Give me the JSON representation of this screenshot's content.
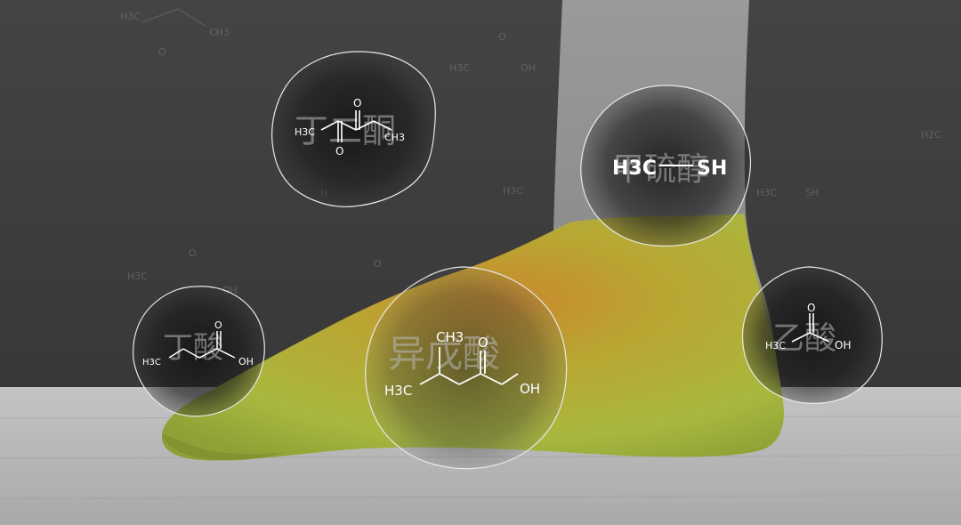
{
  "scene": {
    "description_tag": "",
    "colors": {
      "wall": "#3f3f3f",
      "floor": "#b8b8b8",
      "leg": "#8c8c8c",
      "foot_green": "#a7b63a",
      "foot_orange": "#c8792f",
      "bubble_fill": "#1e1e1e",
      "bubble_stroke": "#e6e6e6"
    }
  },
  "bubbles": [
    {
      "id": "butanedione",
      "name_cn": "丁二酮",
      "labels": {
        "left": "H3C",
        "right": "CH3",
        "o_top": "O",
        "o_bottom": "O"
      }
    },
    {
      "id": "methanethiol",
      "name_cn": "甲硫醇",
      "labels": {
        "left": "H3C",
        "right": "SH"
      }
    },
    {
      "id": "butyric-acid",
      "name_cn": "丁酸",
      "labels": {
        "left": "H3C",
        "o_top": "O",
        "oh": "OH"
      }
    },
    {
      "id": "isovaleric-acid",
      "name_cn": "异戊酸",
      "labels": {
        "top": "CH3",
        "left": "H3C",
        "o_top": "O",
        "oh": "OH"
      }
    },
    {
      "id": "acetic-acid",
      "name_cn": "乙酸",
      "labels": {
        "left": "H3C",
        "o_top": "O",
        "oh": "OH"
      }
    }
  ]
}
